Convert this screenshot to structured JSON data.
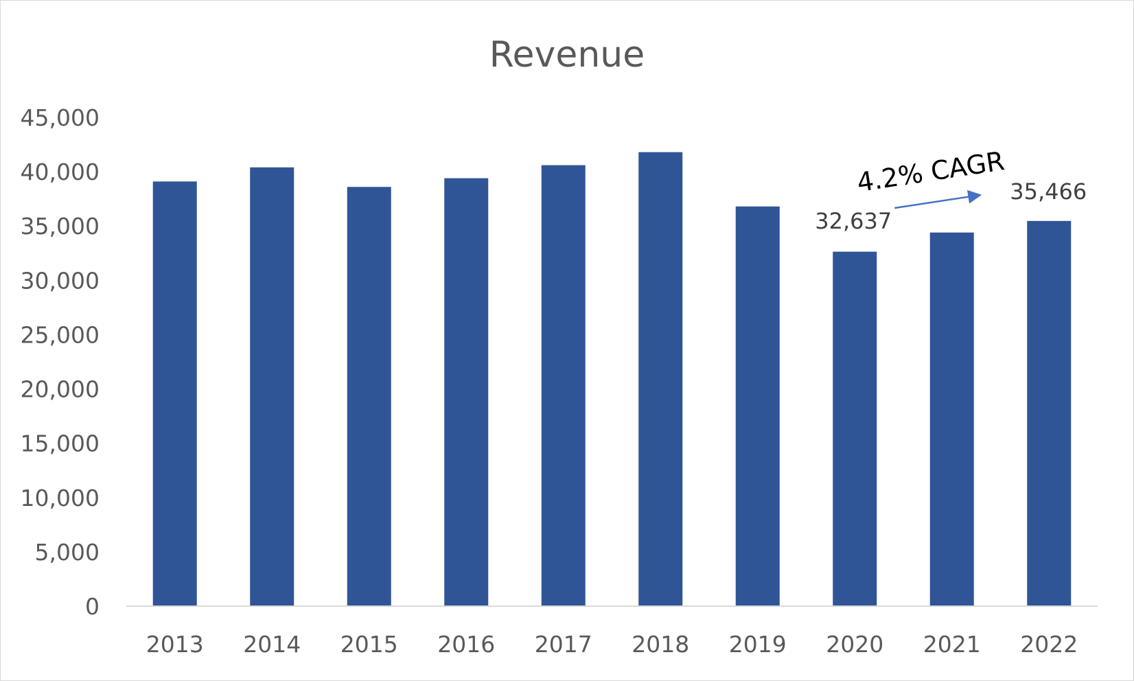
{
  "chart_data": {
    "type": "bar",
    "title": "Revenue",
    "xlabel": "",
    "ylabel": "",
    "categories": [
      "2013",
      "2014",
      "2015",
      "2016",
      "2017",
      "2018",
      "2019",
      "2020",
      "2021",
      "2022"
    ],
    "values": [
      39100,
      40400,
      38600,
      39400,
      40600,
      41800,
      36800,
      32637,
      34400,
      35466
    ],
    "ylim": [
      0,
      45000
    ],
    "yticks": [
      0,
      5000,
      10000,
      15000,
      20000,
      25000,
      30000,
      35000,
      40000,
      45000
    ],
    "ytick_labels": [
      "0",
      "5,000",
      "10,000",
      "15,000",
      "20,000",
      "25,000",
      "30,000",
      "35,000",
      "40,000",
      "45,000"
    ],
    "grid": false,
    "legend": "none",
    "colors": {
      "bar": "#2F5597",
      "axis": "#d9d9d9",
      "text": "#595959",
      "arrow": "#4472C4"
    },
    "data_labels": [
      {
        "category": "2020",
        "text": "32,637"
      },
      {
        "category": "2022",
        "text": "35,466"
      }
    ],
    "annotations": [
      {
        "text": "4.2% CAGR",
        "from": "2020",
        "to": "2022",
        "shape": "arrow"
      }
    ]
  }
}
